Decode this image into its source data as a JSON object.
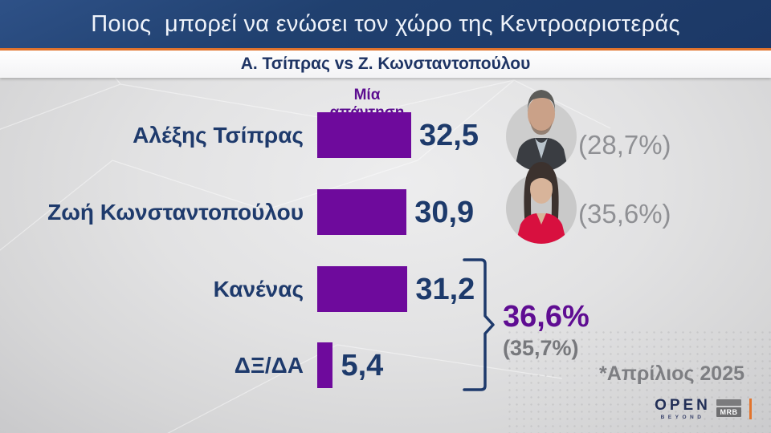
{
  "header": {
    "title": "Ποιος  μπορεί να ενώσει τον χώρο της Κεντροαριστεράς",
    "subtitle": "Α. Τσίπρας vs Ζ. Κωνσταντοπούλου"
  },
  "chart": {
    "answer_note": "Μία απάντηση",
    "rows": [
      {
        "label": "Αλέξης Τσίπρας",
        "value_display": "32,5",
        "paren_note": "(28,7%)"
      },
      {
        "label": "Ζωή Κωνσταντοπούλου",
        "value_display": "30,9",
        "paren_note": "(35,6%)"
      },
      {
        "label": "Κανένας",
        "value_display": "31,2",
        "paren_note": ""
      },
      {
        "label": "ΔΞ/ΔΑ",
        "value_display": "5,4",
        "paren_note": ""
      }
    ],
    "bracket_total": {
      "value": "36,6%",
      "paren_note": "(35,7%)"
    },
    "footnote": "*Απρίλιος 2025"
  },
  "chart_data": {
    "type": "bar",
    "orientation": "horizontal",
    "title": "Ποιος μπορεί να ενώσει τον χώρο της Κεντροαριστεράς",
    "subtitle": "Α. Τσίπρας vs Ζ. Κωνσταντοπούλου",
    "note": "Μία απάντηση",
    "categories": [
      "Αλέξης Τσίπρας",
      "Ζωή Κωνσταντοπούλου",
      "Κανένας",
      "ΔΞ/ΔΑ"
    ],
    "values": [
      32.5,
      30.9,
      31.2,
      5.4
    ],
    "paren_values": [
      28.7,
      35.6,
      null,
      null
    ],
    "group_total": {
      "members": [
        "Κανένας",
        "ΔΞ/ΔΑ"
      ],
      "value": 36.6,
      "paren_value": 35.7
    },
    "footnote": "*Απρίλιος 2025",
    "xlim": [
      0,
      40
    ],
    "grid": false,
    "legend": false,
    "bar_color": "#6e0a9c",
    "value_label_color": "#1d3a6b"
  },
  "branding": {
    "open_word": "OPEN",
    "open_tagline": "BEYOND",
    "mrb_word": "MRB"
  },
  "colors": {
    "header_navy": "#1e3a6b",
    "accent_orange": "#e2742d",
    "bar_purple": "#6e0a9c",
    "purple_text": "#5f0d92",
    "navy_text": "#1e3a6c",
    "gray_text": "#8f9094",
    "background_gray": "#dedede"
  }
}
